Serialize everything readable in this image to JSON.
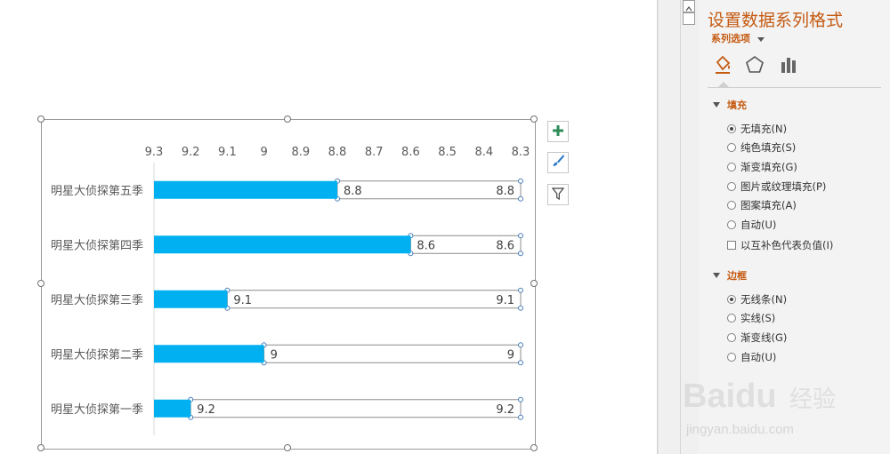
{
  "chart": {
    "categories_top_to_bottom": [
      "明星大侦探第五季",
      "明星大侦探第四季",
      "明星大侦探第三季",
      "明星大侦探第二季",
      "明星大侦探第一季"
    ],
    "axis_ticks": [
      "9.3",
      "9.2",
      "9.1",
      "9",
      "8.9",
      "8.8",
      "8.7",
      "8.6",
      "8.5",
      "8.4",
      "8.3"
    ]
  },
  "chart_data": {
    "type": "bar",
    "orientation": "horizontal",
    "x_axis_reversed": true,
    "xlim": [
      9.3,
      8.3
    ],
    "categories": [
      "明星大侦探第五季",
      "明星大侦探第四季",
      "明星大侦探第三季",
      "明星大侦探第二季",
      "明星大侦探第一季"
    ],
    "series": [
      {
        "color": "#00b0f0",
        "fill": "solid",
        "values": [
          8.8,
          8.6,
          9.1,
          9.0,
          9.2
        ]
      },
      {
        "color": "#ffffff",
        "fill": "none",
        "values": [
          8.8,
          8.6,
          9.1,
          9.0,
          9.2
        ]
      }
    ],
    "data_labels": {
      "series1": [
        "8.8",
        "8.6",
        "9.1",
        "9",
        "9.2"
      ],
      "series2": [
        "8.8",
        "8.6",
        "9.1",
        "9",
        "9.2"
      ]
    },
    "legend": "none",
    "grid": false
  },
  "side_buttons": [
    {
      "icon": "plus-icon"
    },
    {
      "icon": "brush-icon"
    },
    {
      "icon": "filter-icon"
    }
  ],
  "pane": {
    "title": "设置数据系列格式",
    "subtitle": "系列选项",
    "tabs": [
      {
        "icon": "fill-bucket-icon"
      },
      {
        "icon": "pentagon-icon"
      },
      {
        "icon": "bar-chart-icon"
      }
    ],
    "fill_section": {
      "label": "填充",
      "options": [
        "无填充(N)",
        "纯色填充(S)",
        "渐变填充(G)",
        "图片或纹理填充(P)",
        "图案填充(A)",
        "自动(U)"
      ],
      "selected_index": 0,
      "invert_label": "以互补色代表负值(I)"
    },
    "border_section": {
      "label": "边框",
      "options": [
        "无线条(N)",
        "实线(S)",
        "渐变线(G)",
        "自动(U)"
      ],
      "selected_index": 0
    },
    "accent_color": "#c55a11"
  },
  "watermark": {
    "brand": "Baidu",
    "tag": "经验",
    "url": "jingyan.baidu.com"
  }
}
